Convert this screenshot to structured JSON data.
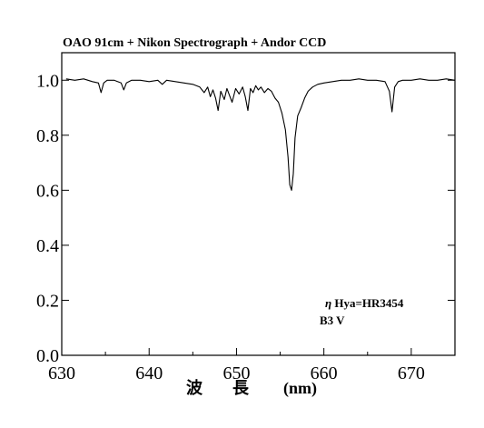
{
  "chart_data": {
    "type": "line",
    "title": "OAO 91cm + Nikon Spectrograph + Andor CCD",
    "xlabel_parts": [
      "波",
      "長",
      "(nm)"
    ],
    "ylabel": "",
    "xlim": [
      630,
      675
    ],
    "ylim": [
      0.0,
      1.1
    ],
    "x_ticks": [
      "630",
      "640",
      "650",
      "660",
      "670"
    ],
    "y_ticks": [
      "0.0",
      "0.2",
      "0.4",
      "0.6",
      "0.8",
      "1.0"
    ],
    "grid": false,
    "legend": "none",
    "annotation": {
      "line1_symbol": "η",
      "line1_text": " Hya=HR3454",
      "line2": "B3 V"
    },
    "line_color": "#000000",
    "series": [
      {
        "x": [
          630.5,
          631.5,
          632.5,
          633.5,
          634.2,
          634.5,
          634.8,
          635.2,
          636.0,
          636.8,
          637.1,
          637.4,
          638.0,
          639.0,
          640.0,
          641.0,
          641.5,
          642.0,
          643.0,
          644.0,
          645.0,
          645.8,
          646.3,
          646.7,
          647.0,
          647.3,
          647.6,
          647.9,
          648.2,
          648.6,
          648.9,
          649.2,
          649.5,
          649.9,
          650.3,
          650.7,
          651.0,
          651.3,
          651.6,
          651.9,
          652.2,
          652.5,
          652.8,
          653.2,
          653.6,
          654.0,
          654.4,
          654.8,
          655.2,
          655.6,
          655.9,
          656.1,
          656.3,
          656.5,
          656.7,
          657.0,
          657.4,
          657.8,
          658.2,
          658.7,
          659.3,
          660.0,
          661.0,
          662.0,
          663.0,
          664.0,
          665.0,
          666.0,
          667.0,
          667.5,
          667.8,
          668.1,
          668.5,
          669.0,
          670.0,
          671.0,
          672.0,
          673.0,
          674.0,
          675.0
        ],
        "y": [
          1.005,
          1.0,
          1.005,
          0.995,
          0.99,
          0.955,
          0.99,
          1.0,
          1.0,
          0.99,
          0.965,
          0.99,
          1.0,
          1.0,
          0.995,
          1.0,
          0.985,
          1.0,
          0.995,
          0.99,
          0.985,
          0.975,
          0.955,
          0.975,
          0.94,
          0.965,
          0.935,
          0.89,
          0.96,
          0.93,
          0.97,
          0.945,
          0.92,
          0.97,
          0.95,
          0.975,
          0.94,
          0.89,
          0.97,
          0.955,
          0.98,
          0.965,
          0.975,
          0.955,
          0.97,
          0.96,
          0.935,
          0.92,
          0.88,
          0.82,
          0.72,
          0.62,
          0.6,
          0.66,
          0.79,
          0.87,
          0.9,
          0.935,
          0.96,
          0.975,
          0.985,
          0.99,
          0.995,
          1.0,
          1.0,
          1.005,
          1.0,
          1.0,
          0.995,
          0.96,
          0.885,
          0.975,
          0.995,
          1.0,
          1.0,
          1.005,
          1.0,
          1.0,
          1.005,
          1.0
        ]
      }
    ]
  }
}
